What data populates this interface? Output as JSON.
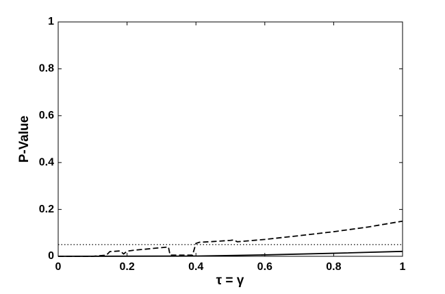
{
  "chart_data": {
    "type": "line",
    "xlabel": "τ = γ",
    "ylabel": "P-Value",
    "xlim": [
      0,
      1
    ],
    "ylim": [
      0,
      1
    ],
    "xticks": [
      0,
      0.2,
      0.4,
      0.6,
      0.8,
      1
    ],
    "yticks": [
      0,
      0.2,
      0.4,
      0.6,
      0.8,
      1
    ],
    "grid": false,
    "series": [
      {
        "color": "#000000",
        "dash": "dashed",
        "x": [
          0,
          0.1,
          0.14,
          0.15,
          0.18,
          0.19,
          0.2,
          0.22,
          0.25,
          0.3,
          0.32,
          0.325,
          0.35,
          0.39,
          0.4,
          0.41,
          0.45,
          0.5,
          0.51,
          0.52,
          0.6,
          0.7,
          0.8,
          0.9,
          1
        ],
        "values": [
          0,
          0,
          0.005,
          0.02,
          0.023,
          0.01,
          0.022,
          0.026,
          0.03,
          0.037,
          0.04,
          0.005,
          0.005,
          0.005,
          0.055,
          0.06,
          0.063,
          0.068,
          0.07,
          0.062,
          0.072,
          0.088,
          0.105,
          0.125,
          0.15
        ]
      },
      {
        "color": "#000000",
        "dash": "solid",
        "x": [
          0,
          0.4,
          0.6,
          0.8,
          1
        ],
        "values": [
          0,
          0.001,
          0.006,
          0.013,
          0.021
        ]
      },
      {
        "color": "#000000",
        "dash": "dotted",
        "x": [
          0,
          1
        ],
        "values": [
          0.05,
          0.05
        ]
      }
    ]
  }
}
